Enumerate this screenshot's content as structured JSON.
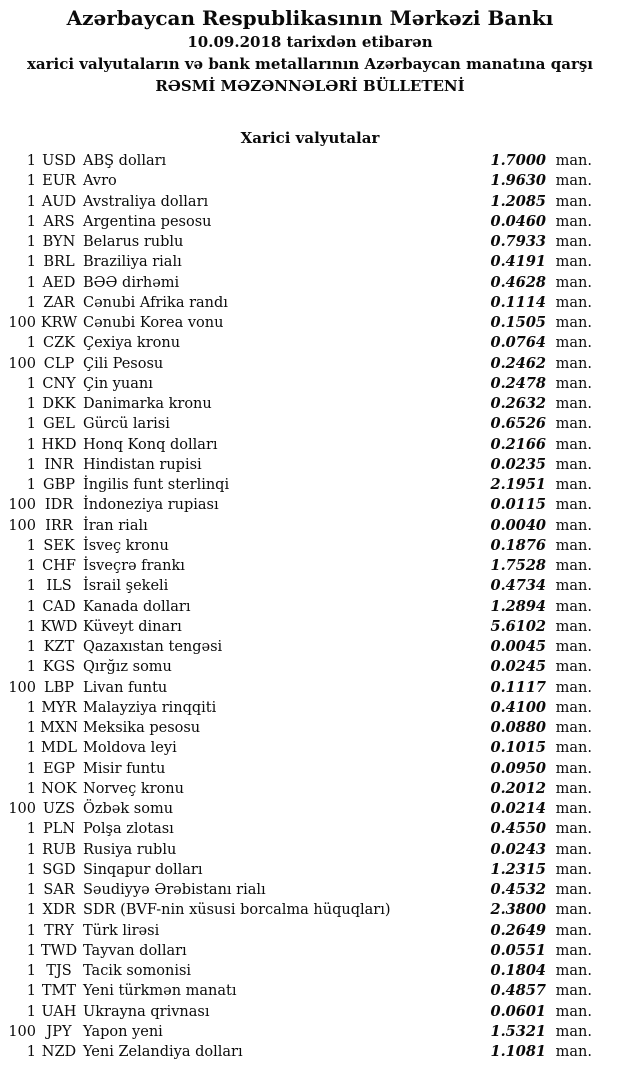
{
  "colors": {
    "background": "#ffffff",
    "text": "#0a0a0a"
  },
  "header": {
    "title": "Azərbaycan Respublikasının Mərkəzi Bankı",
    "date_line": "10.09.2018 tarixdən etibarən",
    "subtitle": "xarici valyutaların və bank metallarının Azərbaycan manatına qarşı",
    "bulletin_line": "RƏSMİ MƏZƏNNƏLƏRİ BÜLLETENİ"
  },
  "section": {
    "title": "Xarici valyutalar"
  },
  "unit": "man.",
  "rates": [
    {
      "qty": "1",
      "code": "USD",
      "name": "ABŞ dolları",
      "rate": "1.7000"
    },
    {
      "qty": "1",
      "code": "EUR",
      "name": "Avro",
      "rate": "1.9630"
    },
    {
      "qty": "1",
      "code": "AUD",
      "name": "Avstraliya dolları",
      "rate": "1.2085"
    },
    {
      "qty": "1",
      "code": "ARS",
      "name": "Argentina pesosu",
      "rate": "0.0460"
    },
    {
      "qty": "1",
      "code": "BYN",
      "name": "Belarus rublu",
      "rate": "0.7933"
    },
    {
      "qty": "1",
      "code": "BRL",
      "name": "Braziliya rialı",
      "rate": "0.4191"
    },
    {
      "qty": "1",
      "code": "AED",
      "name": "BƏƏ dirhəmi",
      "rate": "0.4628"
    },
    {
      "qty": "1",
      "code": "ZAR",
      "name": "Cənubi Afrika randı",
      "rate": "0.1114"
    },
    {
      "qty": "100",
      "code": "KRW",
      "name": "Cənubi Korea vonu",
      "rate": "0.1505"
    },
    {
      "qty": "1",
      "code": "CZK",
      "name": "Çexiya kronu",
      "rate": "0.0764"
    },
    {
      "qty": "100",
      "code": "CLP",
      "name": "Çili Pesosu",
      "rate": "0.2462"
    },
    {
      "qty": "1",
      "code": "CNY",
      "name": "Çin yuanı",
      "rate": "0.2478"
    },
    {
      "qty": "1",
      "code": "DKK",
      "name": "Danimarka kronu",
      "rate": "0.2632"
    },
    {
      "qty": "1",
      "code": "GEL",
      "name": "Gürcü larisi",
      "rate": "0.6526"
    },
    {
      "qty": "1",
      "code": "HKD",
      "name": "Honq Konq dolları",
      "rate": "0.2166"
    },
    {
      "qty": "1",
      "code": "INR",
      "name": "Hindistan rupisi",
      "rate": "0.0235"
    },
    {
      "qty": "1",
      "code": "GBP",
      "name": "İngilis funt sterlinqi",
      "rate": "2.1951"
    },
    {
      "qty": "100",
      "code": "IDR",
      "name": "İndoneziya rupiası",
      "rate": "0.0115"
    },
    {
      "qty": "100",
      "code": "IRR",
      "name": "İran rialı",
      "rate": "0.0040"
    },
    {
      "qty": "1",
      "code": "SEK",
      "name": "İsveç kronu",
      "rate": "0.1876"
    },
    {
      "qty": "1",
      "code": "CHF",
      "name": "İsveçrə frankı",
      "rate": "1.7528"
    },
    {
      "qty": "1",
      "code": "ILS",
      "name": "İsrail şekeli",
      "rate": "0.4734"
    },
    {
      "qty": "1",
      "code": "CAD",
      "name": "Kanada dolları",
      "rate": "1.2894"
    },
    {
      "qty": "1",
      "code": "KWD",
      "name": "Küveyt dinarı",
      "rate": "5.6102"
    },
    {
      "qty": "1",
      "code": "KZT",
      "name": "Qazaxıstan tengəsi",
      "rate": "0.0045"
    },
    {
      "qty": "1",
      "code": "KGS",
      "name": "Qırğız somu",
      "rate": "0.0245"
    },
    {
      "qty": "100",
      "code": "LBP",
      "name": "Livan funtu",
      "rate": "0.1117"
    },
    {
      "qty": "1",
      "code": "MYR",
      "name": "Malayziya rinqqiti",
      "rate": "0.4100"
    },
    {
      "qty": "1",
      "code": "MXN",
      "name": "Meksika pesosu",
      "rate": "0.0880"
    },
    {
      "qty": "1",
      "code": "MDL",
      "name": "Moldova leyi",
      "rate": "0.1015"
    },
    {
      "qty": "1",
      "code": "EGP",
      "name": "Misir funtu",
      "rate": "0.0950"
    },
    {
      "qty": "1",
      "code": "NOK",
      "name": "Norveç kronu",
      "rate": "0.2012"
    },
    {
      "qty": "100",
      "code": "UZS",
      "name": "Özbək somu",
      "rate": "0.0214"
    },
    {
      "qty": "1",
      "code": "PLN",
      "name": "Polşa zlotası",
      "rate": "0.4550"
    },
    {
      "qty": "1",
      "code": "RUB",
      "name": "Rusiya rublu",
      "rate": "0.0243"
    },
    {
      "qty": "1",
      "code": "SGD",
      "name": "Sinqapur dolları",
      "rate": "1.2315"
    },
    {
      "qty": "1",
      "code": "SAR",
      "name": "Səudiyyə Ərəbistanı rialı",
      "rate": "0.4532"
    },
    {
      "qty": "1",
      "code": "XDR",
      "name": "SDR (BVF-nin xüsusi borcalma hüquqları)",
      "rate": "2.3800"
    },
    {
      "qty": "1",
      "code": "TRY",
      "name": "Türk lirəsi",
      "rate": "0.2649"
    },
    {
      "qty": "1",
      "code": "TWD",
      "name": "Tayvan dolları",
      "rate": "0.0551"
    },
    {
      "qty": "1",
      "code": "TJS",
      "name": "Tacik somonisi",
      "rate": "0.1804"
    },
    {
      "qty": "1",
      "code": "TMT",
      "name": "Yeni türkmən manatı",
      "rate": "0.4857"
    },
    {
      "qty": "1",
      "code": "UAH",
      "name": "Ukrayna qrivnası",
      "rate": "0.0601"
    },
    {
      "qty": "100",
      "code": "JPY",
      "name": "Yapon yeni",
      "rate": "1.5321"
    },
    {
      "qty": "1",
      "code": "NZD",
      "name": "Yeni Zelandiya dolları",
      "rate": "1.1081"
    }
  ]
}
